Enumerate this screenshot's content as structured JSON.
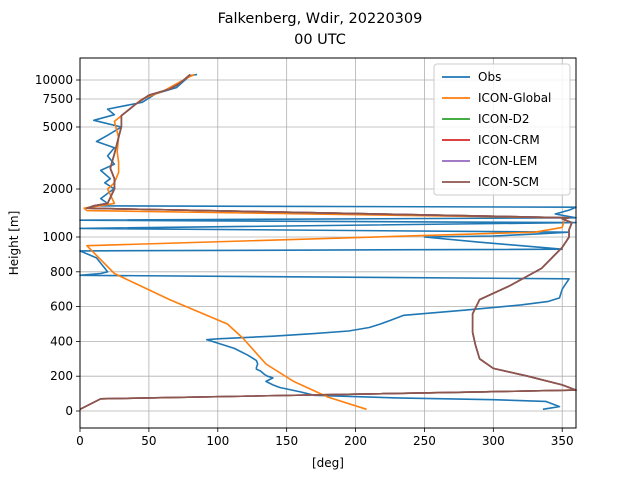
{
  "chart_data": {
    "type": "line",
    "title": "Falkenberg, Wdir, 20220309",
    "subtitle": "00 UTC",
    "xlabel": "[deg]",
    "ylabel": "Height [m]",
    "xlim": [
      0,
      360
    ],
    "ylim": [
      -90,
      12000
    ],
    "grid": true,
    "legend_position": "top-right",
    "x_ticks": [
      0,
      50,
      100,
      150,
      200,
      250,
      300,
      350
    ],
    "y_ticks": [
      0,
      200,
      400,
      600,
      800,
      1000,
      2000,
      5000,
      7500,
      10000
    ],
    "y_scale_note": "piecewise",
    "series": [
      {
        "name": "Obs",
        "color": "#1f77b4",
        "points": [
          [
            336,
            10
          ],
          [
            348,
            25
          ],
          [
            338,
            55
          ],
          [
            300,
            65
          ],
          [
            230,
            75
          ],
          [
            170,
            90
          ],
          [
            160,
            110
          ],
          [
            145,
            135
          ],
          [
            140,
            150
          ],
          [
            135,
            170
          ],
          [
            140,
            190
          ],
          [
            136,
            200
          ],
          [
            134,
            210
          ],
          [
            131,
            230
          ],
          [
            128,
            240
          ],
          [
            128,
            250
          ],
          [
            129,
            270
          ],
          [
            128,
            290
          ],
          [
            122,
            320
          ],
          [
            112,
            360
          ],
          [
            100,
            390
          ],
          [
            92,
            410
          ],
          [
            100,
            415
          ],
          [
            140,
            430
          ],
          [
            170,
            445
          ],
          [
            195,
            460
          ],
          [
            210,
            480
          ],
          [
            218,
            500
          ],
          [
            225,
            520
          ],
          [
            235,
            550
          ],
          [
            280,
            580
          ],
          [
            320,
            610
          ],
          [
            340,
            630
          ],
          [
            348,
            650
          ],
          [
            350,
            700
          ],
          [
            355,
            760
          ],
          [
            0,
            780
          ],
          [
            15,
            790
          ],
          [
            20,
            800
          ],
          [
            12,
            880
          ],
          [
            0,
            920
          ],
          [
            350,
            930
          ],
          [
            290,
            970
          ],
          [
            250,
            1000
          ],
          [
            300,
            1020
          ],
          [
            330,
            1060
          ],
          [
            355,
            1100
          ],
          [
            0,
            1180
          ],
          [
            360,
            1300
          ],
          [
            0,
            1350
          ],
          [
            360,
            1400
          ],
          [
            345,
            1480
          ],
          [
            355,
            1560
          ],
          [
            360,
            1620
          ],
          [
            10,
            1650
          ],
          [
            20,
            1700
          ],
          [
            15,
            1800
          ],
          [
            22,
            1950
          ],
          [
            25,
            2000
          ],
          [
            18,
            2300
          ],
          [
            22,
            2500
          ],
          [
            15,
            2900
          ],
          [
            25,
            3200
          ],
          [
            20,
            3600
          ],
          [
            25,
            4000
          ],
          [
            12,
            4300
          ],
          [
            20,
            4600
          ],
          [
            30,
            5000
          ],
          [
            10,
            5600
          ],
          [
            25,
            6100
          ],
          [
            20,
            6600
          ],
          [
            45,
            7200
          ],
          [
            55,
            8200
          ],
          [
            70,
            9000
          ],
          [
            75,
            9800
          ],
          [
            80,
            10400
          ],
          [
            85,
            10500
          ]
        ]
      },
      {
        "name": "ICON-Global",
        "color": "#ff7f0e",
        "points": [
          [
            208,
            10
          ],
          [
            180,
            80
          ],
          [
            155,
            170
          ],
          [
            135,
            270
          ],
          [
            118,
            420
          ],
          [
            107,
            500
          ],
          [
            65,
            640
          ],
          [
            25,
            790
          ],
          [
            5,
            950
          ],
          [
            330,
            1100
          ],
          [
            350,
            1200
          ],
          [
            352,
            1400
          ],
          [
            5,
            1550
          ],
          [
            3,
            1600
          ],
          [
            25,
            1700
          ],
          [
            20,
            2000
          ],
          [
            25,
            2300
          ],
          [
            28,
            2800
          ],
          [
            28,
            3300
          ],
          [
            27,
            3800
          ],
          [
            28,
            4500
          ],
          [
            25,
            5500
          ],
          [
            35,
            6500
          ],
          [
            45,
            7500
          ],
          [
            60,
            8500
          ],
          [
            70,
            9500
          ],
          [
            78,
            10200
          ],
          [
            83,
            10500
          ]
        ]
      },
      {
        "name": "ICON-D2",
        "color": "#2ca02c",
        "points": [
          [
            0,
            10
          ],
          [
            15,
            70
          ],
          [
            290,
            110
          ],
          [
            360,
            120
          ],
          [
            350,
            150
          ],
          [
            325,
            200
          ],
          [
            300,
            245
          ],
          [
            290,
            300
          ],
          [
            287,
            380
          ],
          [
            285,
            450
          ],
          [
            285,
            560
          ],
          [
            290,
            640
          ],
          [
            312,
            720
          ],
          [
            335,
            820
          ],
          [
            350,
            940
          ],
          [
            355,
            1000
          ],
          [
            355,
            1150
          ],
          [
            357,
            1300
          ],
          [
            350,
            1380
          ],
          [
            355,
            1400
          ],
          [
            5,
            1600
          ],
          [
            10,
            1650
          ],
          [
            20,
            1700
          ],
          [
            25,
            2000
          ],
          [
            25,
            2500
          ],
          [
            22,
            3000
          ],
          [
            25,
            3700
          ],
          [
            28,
            4500
          ],
          [
            30,
            5000
          ],
          [
            30,
            6000
          ],
          [
            40,
            7000
          ],
          [
            50,
            8000
          ],
          [
            65,
            8800
          ],
          [
            72,
            9500
          ],
          [
            80,
            10500
          ]
        ]
      },
      {
        "name": "ICON-CRM",
        "color": "#d62728",
        "points": [
          [
            0,
            10
          ],
          [
            15,
            70
          ],
          [
            290,
            110
          ],
          [
            360,
            120
          ],
          [
            350,
            150
          ],
          [
            325,
            200
          ],
          [
            300,
            245
          ],
          [
            290,
            300
          ],
          [
            287,
            380
          ],
          [
            285,
            450
          ],
          [
            285,
            560
          ],
          [
            290,
            640
          ],
          [
            312,
            720
          ],
          [
            335,
            820
          ],
          [
            350,
            940
          ],
          [
            355,
            1000
          ],
          [
            355,
            1150
          ],
          [
            357,
            1300
          ],
          [
            350,
            1380
          ],
          [
            355,
            1400
          ],
          [
            5,
            1600
          ],
          [
            10,
            1650
          ],
          [
            20,
            1700
          ],
          [
            25,
            2000
          ],
          [
            25,
            2500
          ],
          [
            22,
            3000
          ],
          [
            25,
            3700
          ],
          [
            28,
            4500
          ],
          [
            30,
            5000
          ],
          [
            30,
            6000
          ],
          [
            40,
            7000
          ],
          [
            50,
            8000
          ],
          [
            65,
            8800
          ],
          [
            72,
            9500
          ],
          [
            80,
            10500
          ]
        ]
      },
      {
        "name": "ICON-LEM",
        "color": "#9467bd",
        "points": [
          [
            0,
            10
          ],
          [
            15,
            70
          ],
          [
            290,
            110
          ],
          [
            360,
            120
          ],
          [
            350,
            150
          ],
          [
            325,
            200
          ],
          [
            300,
            245
          ],
          [
            290,
            300
          ],
          [
            287,
            380
          ],
          [
            285,
            450
          ],
          [
            285,
            560
          ],
          [
            290,
            640
          ],
          [
            312,
            720
          ],
          [
            335,
            820
          ],
          [
            350,
            940
          ],
          [
            355,
            1000
          ],
          [
            355,
            1150
          ],
          [
            357,
            1300
          ],
          [
            350,
            1380
          ],
          [
            355,
            1400
          ],
          [
            5,
            1600
          ],
          [
            10,
            1650
          ],
          [
            20,
            1700
          ],
          [
            25,
            2000
          ],
          [
            25,
            2500
          ],
          [
            22,
            3000
          ],
          [
            25,
            3700
          ],
          [
            28,
            4500
          ],
          [
            30,
            5000
          ],
          [
            30,
            6000
          ],
          [
            40,
            7000
          ],
          [
            50,
            8000
          ],
          [
            65,
            8800
          ],
          [
            72,
            9500
          ],
          [
            80,
            10500
          ]
        ]
      },
      {
        "name": "ICON-SCM",
        "color": "#8c564b",
        "points": [
          [
            0,
            10
          ],
          [
            15,
            70
          ],
          [
            290,
            110
          ],
          [
            360,
            120
          ],
          [
            350,
            150
          ],
          [
            325,
            200
          ],
          [
            300,
            245
          ],
          [
            290,
            300
          ],
          [
            287,
            380
          ],
          [
            285,
            450
          ],
          [
            285,
            560
          ],
          [
            290,
            640
          ],
          [
            312,
            720
          ],
          [
            335,
            820
          ],
          [
            350,
            940
          ],
          [
            355,
            1000
          ],
          [
            355,
            1150
          ],
          [
            357,
            1300
          ],
          [
            350,
            1380
          ],
          [
            355,
            1400
          ],
          [
            5,
            1600
          ],
          [
            10,
            1650
          ],
          [
            20,
            1700
          ],
          [
            25,
            2000
          ],
          [
            25,
            2500
          ],
          [
            22,
            3000
          ],
          [
            25,
            3700
          ],
          [
            28,
            4500
          ],
          [
            30,
            5000
          ],
          [
            30,
            6000
          ],
          [
            40,
            7000
          ],
          [
            50,
            8000
          ],
          [
            65,
            8800
          ],
          [
            72,
            9500
          ],
          [
            80,
            10500
          ]
        ]
      }
    ]
  }
}
